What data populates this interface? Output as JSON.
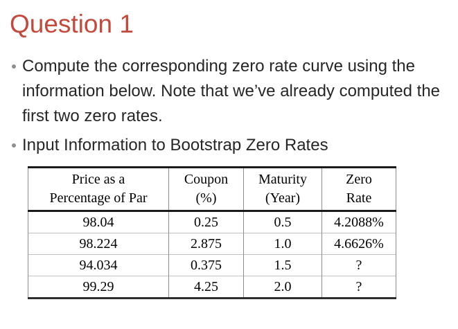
{
  "slide": {
    "title": "Question 1",
    "bullets": {
      "b1": "Compute the corresponding zero rate curve using the information below. Note that we’ve already computed the first two zero rates.",
      "b2": "Input Information to Bootstrap Zero Rates"
    }
  },
  "table": {
    "headers": [
      {
        "line1": "Price as a",
        "line2": "Percentage of Par"
      },
      {
        "line1": "Coupon",
        "line2": "(%)"
      },
      {
        "line1": "Maturity",
        "line2": "(Year)"
      },
      {
        "line1": "Zero",
        "line2": "Rate"
      }
    ],
    "rows": [
      [
        "98.04",
        "0.25",
        "0.5",
        "4.2088%"
      ],
      [
        "98.224",
        "2.875",
        "1.0",
        "4.6626%"
      ],
      [
        "94.034",
        "0.375",
        "1.5",
        "?"
      ],
      [
        "99.29",
        "4.25",
        "2.0",
        "?"
      ]
    ]
  },
  "colors": {
    "title": "#c5493a",
    "body_text": "#262626",
    "bullet_dot": "#8f8f8f",
    "table_rule_heavy": "#1a1a1a",
    "table_rule_light": "#c0c0c0"
  }
}
